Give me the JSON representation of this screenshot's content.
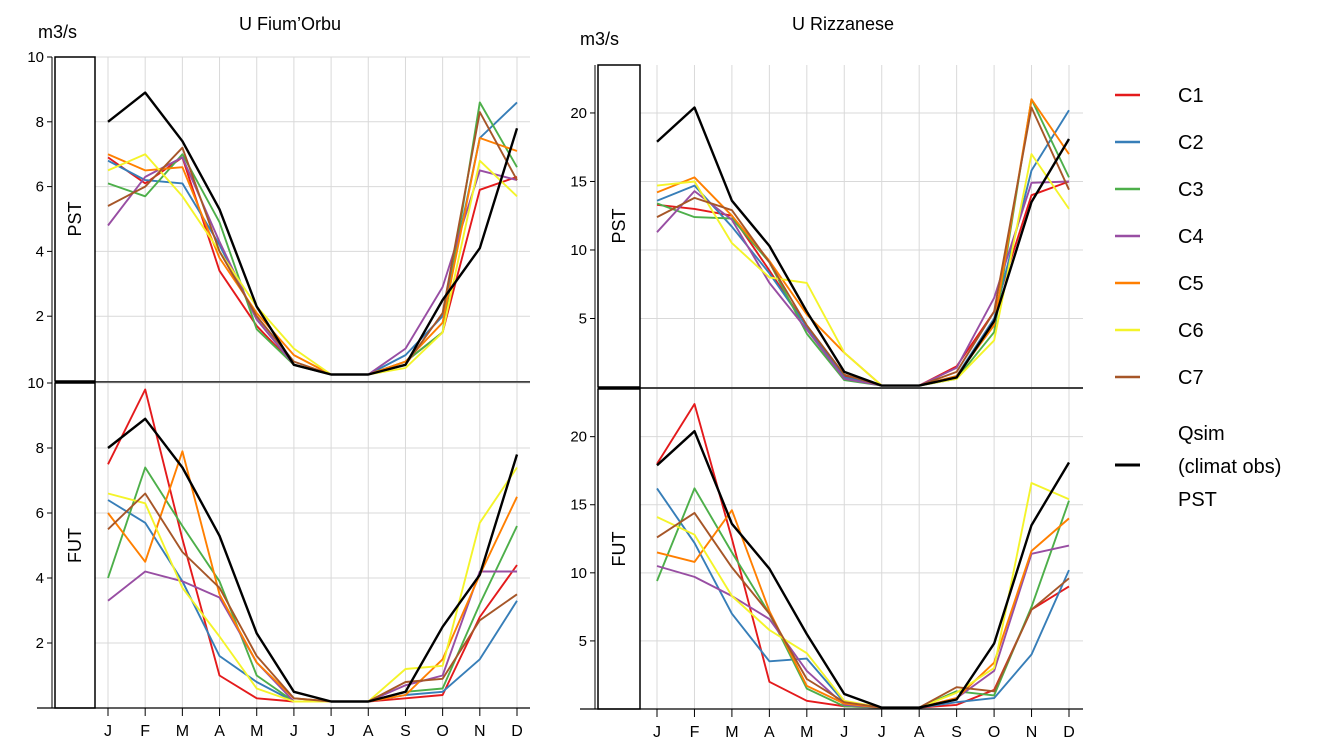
{
  "unit": "m3/s",
  "months": [
    "J",
    "F",
    "M",
    "A",
    "M",
    "J",
    "J",
    "A",
    "S",
    "O",
    "N",
    "D"
  ],
  "period_labels": [
    "PST",
    "FUT"
  ],
  "colors": {
    "C1": "#e41a1c",
    "C2": "#377eb8",
    "C3": "#4daf4a",
    "C4": "#984ea3",
    "C5": "#ff7f00",
    "C6": "#f4f42a",
    "C7": "#a65628",
    "Qsim": "#000000"
  },
  "legend": [
    {
      "key": "C1",
      "label": "C1"
    },
    {
      "key": "C2",
      "label": "C2"
    },
    {
      "key": "C3",
      "label": "C3"
    },
    {
      "key": "C4",
      "label": "C4"
    },
    {
      "key": "C5",
      "label": "C5"
    },
    {
      "key": "C6",
      "label": "C6"
    },
    {
      "key": "C7",
      "label": "C7"
    },
    {
      "key": "Qsim",
      "label_lines": [
        "Qsim",
        "(climat obs)",
        "PST"
      ]
    }
  ],
  "chart_data": [
    {
      "type": "line",
      "title": "U Fium’Orbu",
      "ylabel": "m3/s",
      "x": [
        "J",
        "F",
        "M",
        "A",
        "M",
        "J",
        "J",
        "A",
        "S",
        "O",
        "N",
        "D"
      ],
      "panels": [
        {
          "label": "PST",
          "ylim": [
            0,
            10
          ],
          "yticks": [
            2,
            4,
            6,
            8,
            10
          ],
          "series": [
            {
              "key": "C1",
              "values": [
                6.9,
                6.1,
                6.9,
                3.4,
                1.7,
                0.5,
                0.2,
                0.2,
                0.6,
                1.5,
                5.9,
                6.3
              ]
            },
            {
              "key": "C2",
              "values": [
                6.8,
                6.2,
                6.1,
                4.2,
                1.9,
                0.5,
                0.2,
                0.2,
                0.8,
                2.0,
                7.5,
                8.6
              ]
            },
            {
              "key": "C3",
              "values": [
                6.1,
                5.7,
                7.0,
                4.9,
                1.6,
                0.5,
                0.2,
                0.2,
                0.6,
                1.5,
                8.6,
                6.6
              ]
            },
            {
              "key": "C4",
              "values": [
                4.8,
                6.3,
                6.9,
                4.3,
                1.9,
                0.5,
                0.2,
                0.2,
                1.0,
                2.9,
                6.5,
                6.2
              ]
            },
            {
              "key": "C5",
              "values": [
                7.0,
                6.5,
                6.6,
                3.8,
                2.1,
                0.8,
                0.2,
                0.2,
                0.6,
                1.8,
                7.5,
                7.1
              ]
            },
            {
              "key": "C6",
              "values": [
                6.5,
                7.0,
                5.7,
                4.0,
                2.3,
                1.0,
                0.2,
                0.2,
                0.4,
                1.5,
                6.8,
                5.7
              ]
            },
            {
              "key": "C7",
              "values": [
                5.4,
                6.0,
                7.2,
                4.0,
                2.0,
                0.6,
                0.2,
                0.2,
                0.5,
                2.1,
                8.3,
                6.2
              ]
            },
            {
              "key": "Qsim",
              "values": [
                8.0,
                8.9,
                7.4,
                5.3,
                2.3,
                0.5,
                0.2,
                0.2,
                0.5,
                2.5,
                4.1,
                7.8
              ]
            }
          ]
        },
        {
          "label": "FUT",
          "ylim": [
            0,
            10
          ],
          "yticks": [
            2,
            4,
            6,
            8,
            10
          ],
          "series": [
            {
              "key": "C1",
              "values": [
                7.5,
                9.8,
                5.2,
                1.0,
                0.3,
                0.2,
                0.2,
                0.2,
                0.3,
                0.4,
                2.8,
                4.4
              ]
            },
            {
              "key": "C2",
              "values": [
                6.4,
                5.7,
                3.9,
                1.6,
                0.8,
                0.2,
                0.2,
                0.2,
                0.4,
                0.5,
                1.5,
                3.3
              ]
            },
            {
              "key": "C3",
              "values": [
                4.0,
                7.4,
                5.6,
                3.9,
                1.0,
                0.2,
                0.2,
                0.2,
                0.5,
                0.6,
                3.2,
                5.6
              ]
            },
            {
              "key": "C4",
              "values": [
                3.3,
                4.2,
                3.9,
                3.4,
                1.4,
                0.2,
                0.2,
                0.2,
                0.7,
                1.0,
                4.2,
                4.2
              ]
            },
            {
              "key": "C5",
              "values": [
                6.0,
                4.5,
                7.9,
                3.5,
                1.4,
                0.3,
                0.2,
                0.2,
                0.4,
                1.5,
                4.1,
                6.5
              ]
            },
            {
              "key": "C6",
              "values": [
                6.6,
                6.3,
                3.7,
                2.2,
                0.6,
                0.2,
                0.2,
                0.2,
                1.2,
                1.3,
                5.7,
                7.4
              ]
            },
            {
              "key": "C7",
              "values": [
                5.5,
                6.6,
                4.8,
                3.7,
                1.6,
                0.3,
                0.2,
                0.2,
                0.8,
                0.9,
                2.7,
                3.5
              ]
            },
            {
              "key": "Qsim",
              "values": [
                8.0,
                8.9,
                7.4,
                5.3,
                2.3,
                0.5,
                0.2,
                0.2,
                0.5,
                2.5,
                4.1,
                7.8
              ]
            }
          ]
        }
      ]
    },
    {
      "type": "line",
      "title": "U Rizzanese",
      "ylabel": "m3/s",
      "x": [
        "J",
        "F",
        "M",
        "A",
        "M",
        "J",
        "J",
        "A",
        "S",
        "O",
        "N",
        "D"
      ],
      "panels": [
        {
          "label": "PST",
          "ylim": [
            0,
            23.5
          ],
          "yticks": [
            5,
            10,
            15,
            20
          ],
          "series": [
            {
              "key": "C1",
              "values": [
                13.3,
                13.0,
                12.5,
                8.5,
                4.4,
                0.8,
                0.1,
                0.1,
                1.5,
                5.5,
                14.0,
                15.0
              ]
            },
            {
              "key": "C2",
              "values": [
                13.6,
                14.7,
                11.7,
                8.3,
                4.4,
                0.7,
                0.1,
                0.1,
                0.8,
                5.0,
                15.8,
                20.2
              ]
            },
            {
              "key": "C3",
              "values": [
                13.4,
                12.4,
                12.3,
                9.1,
                3.9,
                0.5,
                0.1,
                0.1,
                0.6,
                4.0,
                21.0,
                15.3
              ]
            },
            {
              "key": "C4",
              "values": [
                11.3,
                14.3,
                12.2,
                7.6,
                4.2,
                0.6,
                0.1,
                0.1,
                1.4,
                6.5,
                14.9,
                15.0
              ]
            },
            {
              "key": "C5",
              "values": [
                14.2,
                15.3,
                12.5,
                9.2,
                5.3,
                2.5,
                0.1,
                0.1,
                0.8,
                4.5,
                21.0,
                17.0
              ]
            },
            {
              "key": "C6",
              "values": [
                14.7,
                15.0,
                10.5,
                8.0,
                7.6,
                2.5,
                0.1,
                0.1,
                0.6,
                3.4,
                17.0,
                13.0
              ]
            },
            {
              "key": "C7",
              "values": [
                12.4,
                13.8,
                12.9,
                9.1,
                4.5,
                0.9,
                0.1,
                0.1,
                1.1,
                5.5,
                20.4,
                14.4
              ]
            },
            {
              "key": "Qsim",
              "values": [
                17.9,
                20.4,
                13.6,
                10.3,
                5.5,
                1.1,
                0.1,
                0.1,
                0.7,
                4.8,
                13.5,
                18.1
              ]
            }
          ]
        },
        {
          "label": "FUT",
          "ylim": [
            0,
            23.5
          ],
          "yticks": [
            5,
            10,
            15,
            20
          ],
          "series": [
            {
              "key": "C1",
              "values": [
                18.0,
                22.4,
                12.5,
                2.0,
                0.6,
                0.2,
                0.1,
                0.1,
                0.3,
                1.4,
                7.3,
                9.0
              ]
            },
            {
              "key": "C2",
              "values": [
                16.2,
                12.2,
                7.0,
                3.5,
                3.7,
                0.5,
                0.1,
                0.1,
                0.5,
                0.8,
                4.0,
                10.2
              ]
            },
            {
              "key": "C3",
              "values": [
                9.4,
                16.2,
                11.5,
                7.0,
                1.5,
                0.2,
                0.1,
                0.1,
                1.3,
                1.0,
                7.5,
                15.3
              ]
            },
            {
              "key": "C4",
              "values": [
                10.5,
                9.7,
                8.3,
                6.6,
                2.8,
                0.3,
                0.1,
                0.1,
                0.8,
                2.8,
                11.4,
                12.0
              ]
            },
            {
              "key": "C5",
              "values": [
                11.5,
                10.8,
                14.6,
                7.2,
                1.7,
                0.4,
                0.1,
                0.1,
                0.8,
                3.4,
                11.6,
                14.0
              ]
            },
            {
              "key": "C6",
              "values": [
                14.1,
                12.8,
                8.3,
                5.8,
                4.1,
                0.6,
                0.1,
                0.1,
                1.2,
                3.0,
                16.6,
                15.4
              ]
            },
            {
              "key": "C7",
              "values": [
                12.6,
                14.4,
                10.4,
                7.0,
                2.2,
                0.5,
                0.1,
                0.1,
                1.6,
                1.3,
                7.3,
                9.6
              ]
            },
            {
              "key": "Qsim",
              "values": [
                17.9,
                20.4,
                13.6,
                10.3,
                5.5,
                1.1,
                0.1,
                0.1,
                0.7,
                4.8,
                13.5,
                18.1
              ]
            }
          ]
        }
      ]
    }
  ]
}
